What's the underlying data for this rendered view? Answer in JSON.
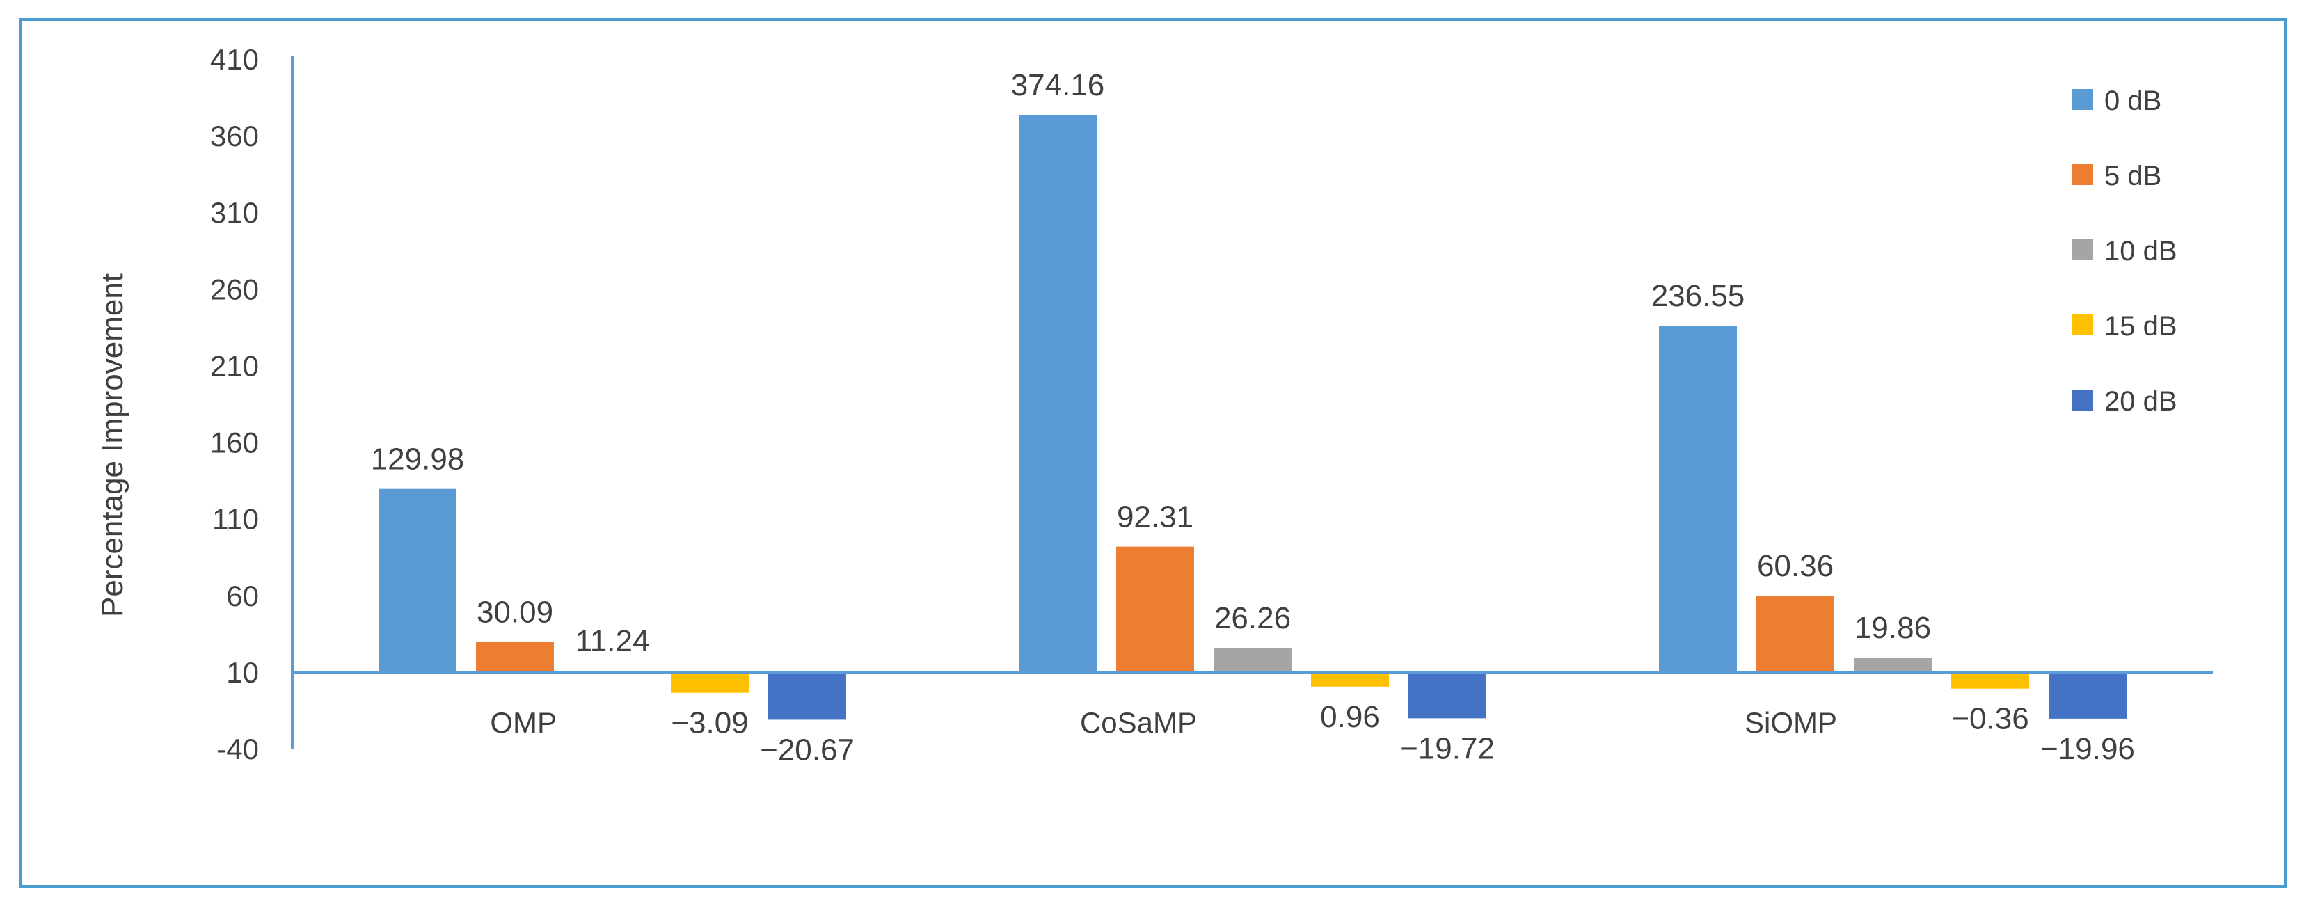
{
  "chart_data": {
    "type": "bar",
    "title": "",
    "xlabel": "",
    "ylabel": "Percentage Improvement",
    "ylim": [
      -40,
      410
    ],
    "yticks": [
      410,
      360,
      310,
      260,
      210,
      160,
      110,
      60,
      10,
      -40
    ],
    "ytick_labels": [
      "410",
      "360",
      "310",
      "260",
      "210",
      "160",
      "110",
      "60",
      "10",
      "-40"
    ],
    "baseline": 10,
    "grid": false,
    "legend_position": "right",
    "categories": [
      "OMP",
      "CoSaMP",
      "SiOMP"
    ],
    "series": [
      {
        "name": "0 dB",
        "color": "#5b9bd5",
        "values": [
          129.98,
          374.16,
          236.55
        ],
        "labels": [
          "129.98",
          "374.16",
          "236.55"
        ]
      },
      {
        "name": "5 dB",
        "color": "#ed7d31",
        "values": [
          30.09,
          92.31,
          60.36
        ],
        "labels": [
          "30.09",
          "92.31",
          "60.36"
        ]
      },
      {
        "name": "10 dB",
        "color": "#a5a5a5",
        "values": [
          11.24,
          26.26,
          19.86
        ],
        "labels": [
          "11.24",
          "26.26",
          "19.86"
        ]
      },
      {
        "name": "15 dB",
        "color": "#ffc000",
        "values": [
          -3.09,
          0.96,
          -0.36
        ],
        "labels": [
          "−3.09",
          "0.96",
          "−0.36"
        ]
      },
      {
        "name": "20 dB",
        "color": "#4472c4",
        "values": [
          -20.67,
          -19.72,
          -19.96
        ],
        "labels": [
          "−20.67",
          "−19.72",
          "−19.96"
        ]
      }
    ]
  },
  "colors": {
    "axis": "#5b9bd5",
    "frame": "#4a9bd0",
    "text": "#404040"
  }
}
